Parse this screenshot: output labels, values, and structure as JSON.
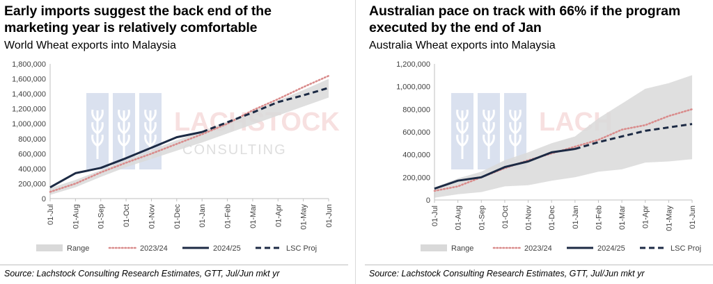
{
  "panels": [
    {
      "title_line1": "Early imports suggest the back end of the",
      "title_line2": "marketing year is relatively comfortable",
      "subtitle": "World Wheat exports into Malaysia",
      "source": "Source: Lachstock Consulting Research Estimates, GTT, Jul/Jun mkt yr",
      "watermark": "LACHSTOCK CONSULTING"
    },
    {
      "title_line1": "Australian pace on track with 66% if the program",
      "title_line2": "executed by the end of Jan",
      "subtitle": "Australia Wheat exports into Malaysia",
      "source": "Source: Lachstock Consulting Research Estimates, GTT, Jul/Jun mkt yr",
      "watermark": "LACHSTOCK CONSULTING"
    }
  ],
  "chart_data": [
    {
      "type": "area",
      "title": "World Wheat exports into Malaysia",
      "categories": [
        "01-Jul",
        "01-Aug",
        "01-Sep",
        "01-Oct",
        "01-Nov",
        "01-Dec",
        "01-Jan",
        "01-Feb",
        "01-Mar",
        "01-Apr",
        "01-May",
        "01-Jun"
      ],
      "ylim": [
        0,
        1800000
      ],
      "yticks": [
        0,
        200000,
        400000,
        600000,
        800000,
        1000000,
        1200000,
        1400000,
        1600000,
        1800000
      ],
      "ytick_labels": [
        "0",
        "200,000",
        "400,000",
        "600,000",
        "800,000",
        "1,000,000",
        "1,200,000",
        "1,400,000",
        "1,600,000",
        "1,800,000"
      ],
      "grid": false,
      "legend_position": "bottom",
      "legend": [
        "Range",
        "2023/24",
        "2024/25",
        "LSC Proj"
      ],
      "colors": {
        "range": "#d9d9d9",
        "s2023": "#d98b8b",
        "s2024": "#1c2a44",
        "proj": "#1c2a44"
      },
      "range_low": [
        50000,
        150000,
        290000,
        420000,
        530000,
        640000,
        750000,
        870000,
        990000,
        1110000,
        1230000,
        1350000
      ],
      "range_high": [
        140000,
        250000,
        380000,
        520000,
        650000,
        780000,
        900000,
        1030000,
        1170000,
        1310000,
        1450000,
        1600000
      ],
      "series": [
        {
          "name": "2023/24",
          "values": [
            90000,
            200000,
            350000,
            480000,
            600000,
            730000,
            860000,
            1000000,
            1180000,
            1330000,
            1490000,
            1640000
          ]
        },
        {
          "name": "2024/25",
          "values": [
            150000,
            340000,
            410000,
            540000,
            680000,
            820000,
            890000,
            null,
            null,
            null,
            null,
            null
          ]
        },
        {
          "name": "LSC Proj",
          "values": [
            null,
            null,
            null,
            null,
            null,
            null,
            890000,
            1020000,
            1150000,
            1290000,
            1380000,
            1480000
          ]
        }
      ]
    },
    {
      "type": "area",
      "title": "Australia Wheat exports into Malaysia",
      "categories": [
        "01-Jul",
        "01-Aug",
        "01-Sep",
        "01-Oct",
        "01-Nov",
        "01-Dec",
        "01-Jan",
        "01-Feb",
        "01-Mar",
        "01-Apr",
        "01-May",
        "01-Jun"
      ],
      "ylim": [
        0,
        1200000
      ],
      "yticks": [
        0,
        200000,
        400000,
        600000,
        800000,
        1000000,
        1200000
      ],
      "ytick_labels": [
        "0",
        "200,000",
        "400,000",
        "600,000",
        "800,000",
        "1,000,000",
        "1,200,000"
      ],
      "grid": false,
      "legend_position": "bottom",
      "legend": [
        "Range",
        "2023/24",
        "2024/25",
        "LSC Proj"
      ],
      "colors": {
        "range": "#d9d9d9",
        "s2023": "#d98b8b",
        "s2024": "#1c2a44",
        "proj": "#1c2a44"
      },
      "range_low": [
        20000,
        50000,
        70000,
        120000,
        130000,
        170000,
        200000,
        250000,
        270000,
        330000,
        340000,
        360000
      ],
      "range_high": [
        110000,
        190000,
        250000,
        350000,
        420000,
        500000,
        560000,
        720000,
        850000,
        980000,
        1030000,
        1100000
      ],
      "series": [
        {
          "name": "2023/24",
          "values": [
            80000,
            120000,
            200000,
            280000,
            350000,
            410000,
            470000,
            530000,
            620000,
            660000,
            740000,
            800000
          ]
        },
        {
          "name": "2024/25",
          "values": [
            100000,
            170000,
            200000,
            290000,
            340000,
            420000,
            450000,
            null,
            null,
            null,
            null,
            null
          ]
        },
        {
          "name": "LSC Proj",
          "values": [
            null,
            null,
            null,
            null,
            null,
            null,
            450000,
            510000,
            560000,
            610000,
            640000,
            670000
          ]
        }
      ]
    }
  ]
}
